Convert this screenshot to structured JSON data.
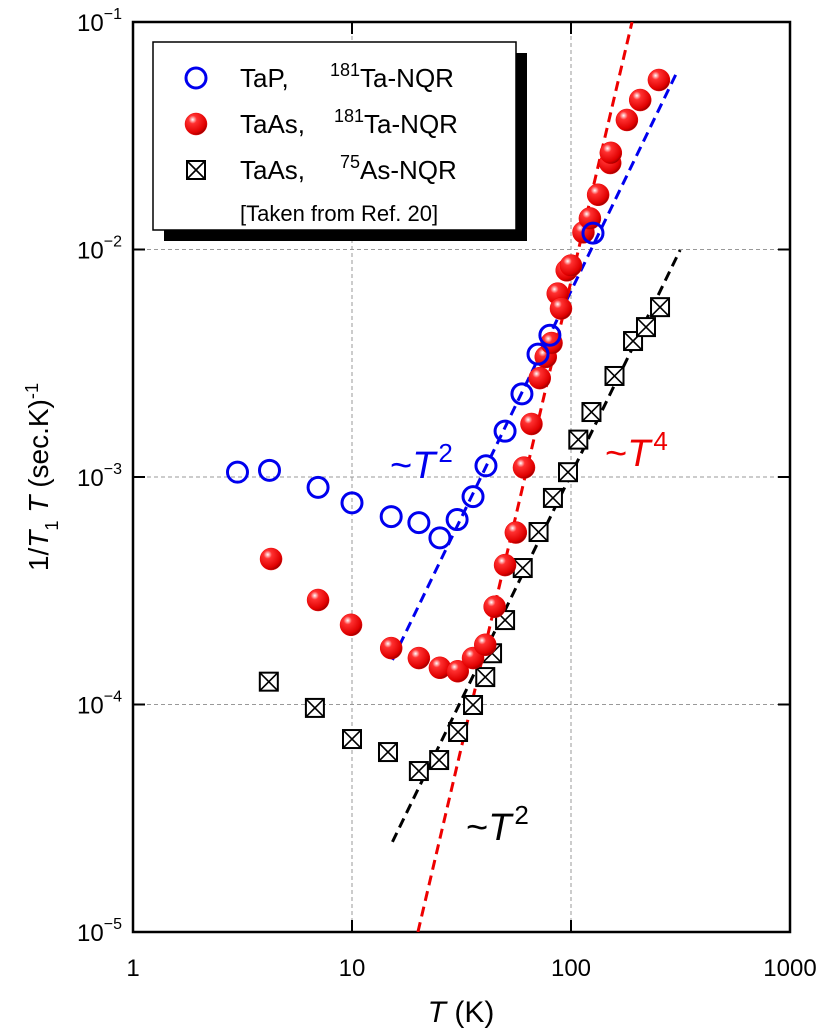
{
  "chart_data": {
    "type": "scatter",
    "log_x": true,
    "log_y": true,
    "grid": true,
    "legend": "upper left",
    "xlim": [
      1,
      1000
    ],
    "xticks": [
      1,
      10,
      100,
      1000
    ],
    "ylim": [
      1e-05,
      0.1
    ],
    "yticks": [
      {
        "value": 1e-05,
        "label": "10",
        "exponent": "−5"
      },
      {
        "value": 0.0001,
        "label": "10",
        "exponent": "−4"
      },
      {
        "value": 0.001,
        "label": "10",
        "exponent": "−3"
      },
      {
        "value": 0.01,
        "label": "10",
        "exponent": "−2"
      },
      {
        "value": 0.1,
        "label": "10",
        "exponent": "−1"
      }
    ],
    "xlabel": [
      {
        "text": "T",
        "italic": true
      },
      {
        "text": " (K)"
      }
    ],
    "ylabel": [
      {
        "text": "1/"
      },
      {
        "text": "T",
        "italic": true
      },
      {
        "text": "1",
        "sub": true
      },
      {
        "text": " T",
        "italic": true
      },
      {
        "text": " (sec.K)"
      },
      {
        "text": "-1",
        "sup": true
      }
    ],
    "series": [
      {
        "name": "TaP,",
        "isotope": "181",
        "nucleus": "Ta-NQR",
        "marker": "open-circle",
        "color": "#0000ee",
        "x": [
          3,
          4.2,
          7,
          10,
          15.1,
          20.2,
          25.2,
          30.2,
          35.7,
          40.9,
          50,
          59.7,
          70.7,
          80.1,
          126
        ],
        "values": [
          0.00105,
          0.00107,
          0.0009,
          0.00077,
          0.00067,
          0.00063,
          0.00054,
          0.00065,
          0.00082,
          0.00112,
          0.00159,
          0.00232,
          0.00347,
          0.0042,
          0.0118
        ]
      },
      {
        "name": "TaAs,",
        "isotope": "181",
        "nucleus": "Ta-NQR",
        "marker": "sphere",
        "color": "#ee0000",
        "x": [
          4.27,
          7,
          9.9,
          15.1,
          20.2,
          25.2,
          30.4,
          35.7,
          40.6,
          44.8,
          50,
          56,
          61,
          66,
          72,
          76.7,
          81.5,
          87,
          90,
          95.6,
          100,
          114,
          122,
          133,
          151,
          152,
          180,
          207,
          252
        ],
        "values": [
          0.000436,
          0.000288,
          0.000224,
          0.000177,
          0.00016,
          0.000145,
          0.00014,
          0.00016,
          0.000183,
          0.000269,
          0.00041,
          0.00057,
          0.0011,
          0.00171,
          0.00272,
          0.00337,
          0.00388,
          0.0064,
          0.0055,
          0.0081,
          0.0085,
          0.0119,
          0.0137,
          0.0174,
          0.024,
          0.0266,
          0.0371,
          0.0454,
          0.0556
        ]
      },
      {
        "name": "TaAs,",
        "isotope": "75",
        "nucleus": "As-NQR",
        "note": "[Taken from Ref. 20]",
        "marker": "boxed-x",
        "color": "#000000",
        "x": [
          4.17,
          6.77,
          10,
          14.6,
          20.2,
          25,
          30.5,
          35.7,
          40.6,
          43.6,
          50,
          60.2,
          71.1,
          82.7,
          96.9,
          108,
          124,
          158,
          192,
          220,
          255
        ],
        "values": [
          0.000126,
          9.66e-05,
          7.05e-05,
          6.18e-05,
          5.1e-05,
          5.7e-05,
          7.57e-05,
          9.95e-05,
          0.000132,
          0.000168,
          0.000235,
          0.000398,
          0.000573,
          0.000809,
          0.00105,
          0.00146,
          0.00193,
          0.00278,
          0.00396,
          0.00456,
          0.00558
        ]
      }
    ],
    "fits": [
      {
        "prefix": "~",
        "var": "T",
        "exponent": "2",
        "color": "#0000ee",
        "x": [
          15.3,
          308
        ],
        "values": [
          0.000157,
          0.0615
        ]
      },
      {
        "prefix": "~",
        "var": "T",
        "exponent": "4",
        "color": "#ee0000",
        "x": [
          20,
          190
        ],
        "values": [
          1e-05,
          0.1
        ]
      },
      {
        "prefix": "~",
        "var": "T",
        "exponent": "2",
        "color": "#000000",
        "x": [
          15.3,
          315
        ],
        "values": [
          2.49e-05,
          0.00995
        ]
      }
    ]
  }
}
